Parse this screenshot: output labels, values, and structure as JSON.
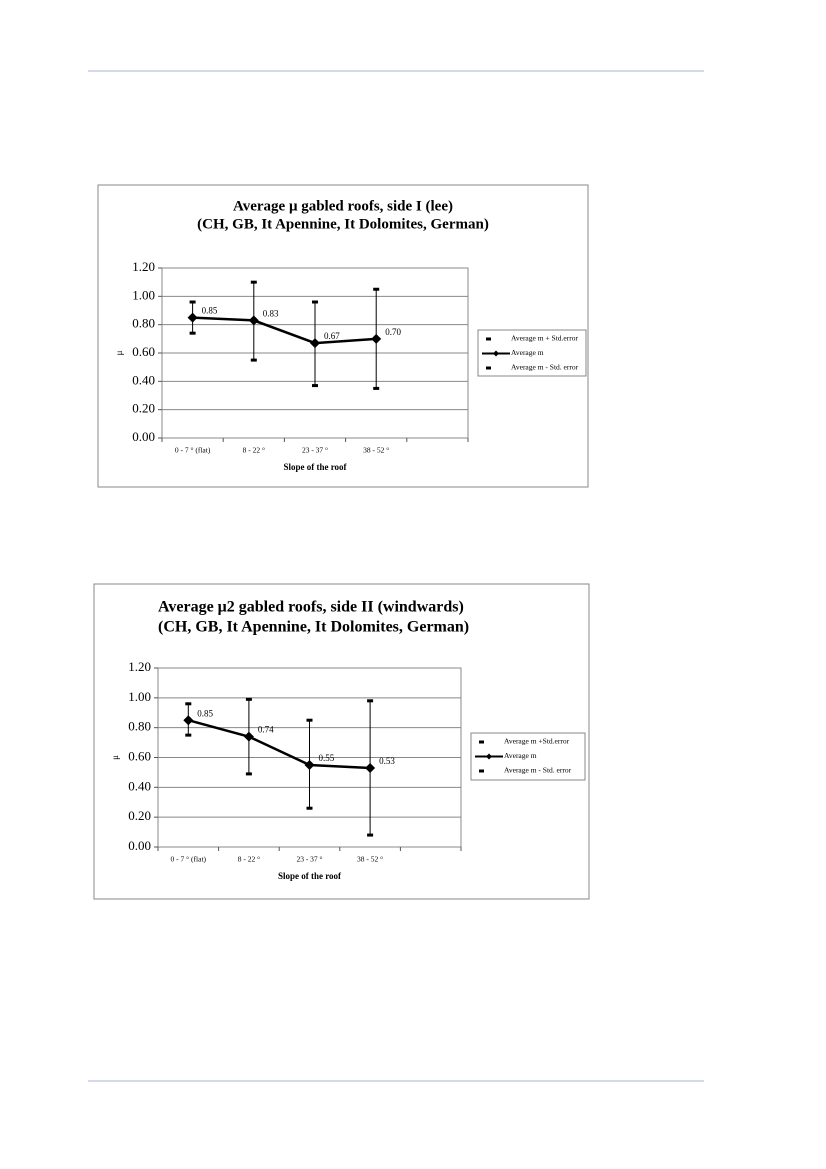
{
  "chart_data": [
    {
      "type": "line",
      "title": "Average μ gabled roofs, side I (lee)",
      "subtitle": "(CH, GB, It Apennine, It Dolomites, German)",
      "categories": [
        "0 - 7 ° (flat)",
        "8 - 22 °",
        "23 - 37 °",
        "38 - 52 °",
        null
      ],
      "series": [
        {
          "name": "Average m + Std.error",
          "color": "#000000",
          "values": [
            0.96,
            1.1,
            0.96,
            1.05,
            null
          ]
        },
        {
          "name": "Average m",
          "color": "#000000",
          "values": [
            0.85,
            0.83,
            0.67,
            0.7,
            null
          ],
          "value_labels": [
            "0.85",
            "0.83",
            "0.67",
            "0.70",
            null
          ]
        },
        {
          "name": "Average m - Std. error",
          "color": "#000000",
          "values": [
            0.74,
            0.55,
            0.37,
            0.35,
            null
          ]
        }
      ],
      "ylim": [
        0,
        1.2
      ],
      "yticks": [
        {
          "value": 0,
          "label": "0.00"
        },
        {
          "value": 0.2,
          "label": "0.20"
        },
        {
          "value": 0.4,
          "label": "0.40"
        },
        {
          "value": 0.6,
          "label": "0.60"
        },
        {
          "value": 0.8,
          "label": "0.80"
        },
        {
          "value": 1,
          "label": "1.00"
        },
        {
          "value": 1.2,
          "label": "1.20"
        }
      ],
      "ylabel": "μ",
      "xlabel": "Slope of the roof",
      "grid": true,
      "legend": "right"
    },
    {
      "type": "line",
      "title": "Average μ2 gabled roofs, side II (windwards)",
      "subtitle": "(CH, GB, It Apennine, It Dolomites, German)",
      "categories": [
        "0 - 7 ° (flat)",
        "8 - 22 °",
        "23 - 37 °",
        "38 - 52 °",
        null
      ],
      "series": [
        {
          "name": "Average m +Std.error",
          "color": "#000000",
          "values": [
            0.96,
            0.99,
            0.85,
            0.98,
            null
          ]
        },
        {
          "name": "Average m",
          "color": "#000000",
          "values": [
            0.85,
            0.74,
            0.55,
            0.53,
            null
          ]
        },
        {
          "name": "Average m - Std. error",
          "color": "#000000",
          "values": [
            0.75,
            0.49,
            0.26,
            0.08,
            null
          ]
        }
      ],
      "ylim": [
        0,
        1.2
      ],
      "yticks": [
        {
          "value": 0,
          "label": "0.00"
        },
        {
          "value": 0.2,
          "label": "0.20"
        },
        {
          "value": 0.4,
          "label": "0.40"
        },
        {
          "value": 0.6,
          "label": "0.60"
        },
        {
          "value": 0.8,
          "label": "0.80"
        },
        {
          "value": 1,
          "label": "1.00"
        },
        {
          "value": 1.2,
          "label": "1.20"
        }
      ],
      "ylabel": "μ",
      "xlabel": "Slope of the roof",
      "grid": true,
      "legend": "right"
    }
  ]
}
